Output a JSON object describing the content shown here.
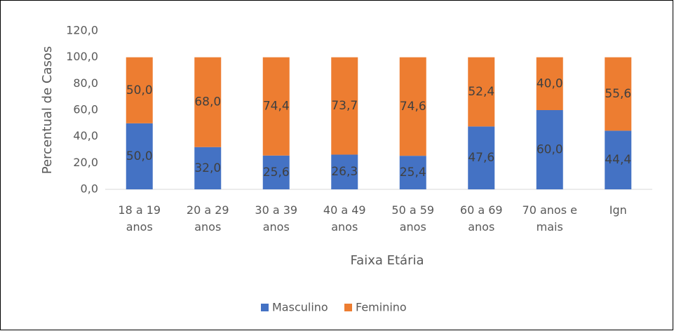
{
  "chart_data": {
    "type": "stacked_bar",
    "y_label": "Percentual de Casos",
    "x_label": "Faixa Etária",
    "categories": [
      "18 a 19 anos",
      "20 a 29 anos",
      "30 a 39 anos",
      "40 a 49 anos",
      "50 a 59 anos",
      "60 a 69 anos",
      "70 anos e mais",
      "Ign"
    ],
    "series": [
      {
        "name": "Masculino",
        "color": "#4472c4",
        "values": [
          50.0,
          32.0,
          25.6,
          26.3,
          25.4,
          47.6,
          60.0,
          44.4
        ],
        "value_labels": [
          "50,0",
          "32,0",
          "25,6",
          "26,3",
          "25,4",
          "47,6",
          "60,0",
          "44,4"
        ]
      },
      {
        "name": "Feminino",
        "color": "#ed7d31",
        "values": [
          50.0,
          68.0,
          74.4,
          73.7,
          74.6,
          52.4,
          40.0,
          55.6
        ],
        "value_labels": [
          "50,0",
          "68,0",
          "74,4",
          "73,7",
          "74,6",
          "52,4",
          "40,0",
          "55,6"
        ]
      }
    ],
    "ylim": [
      0,
      120
    ],
    "yticks": [
      {
        "value": 0,
        "label": "0,0"
      },
      {
        "value": 20,
        "label": "20,0"
      },
      {
        "value": 40,
        "label": "40,0"
      },
      {
        "value": 60,
        "label": "60,0"
      },
      {
        "value": 80,
        "label": "80,0"
      },
      {
        "value": 100,
        "label": "100,0"
      },
      {
        "value": 120,
        "label": "120,0"
      }
    ],
    "grid": false,
    "legend": "bottom"
  }
}
